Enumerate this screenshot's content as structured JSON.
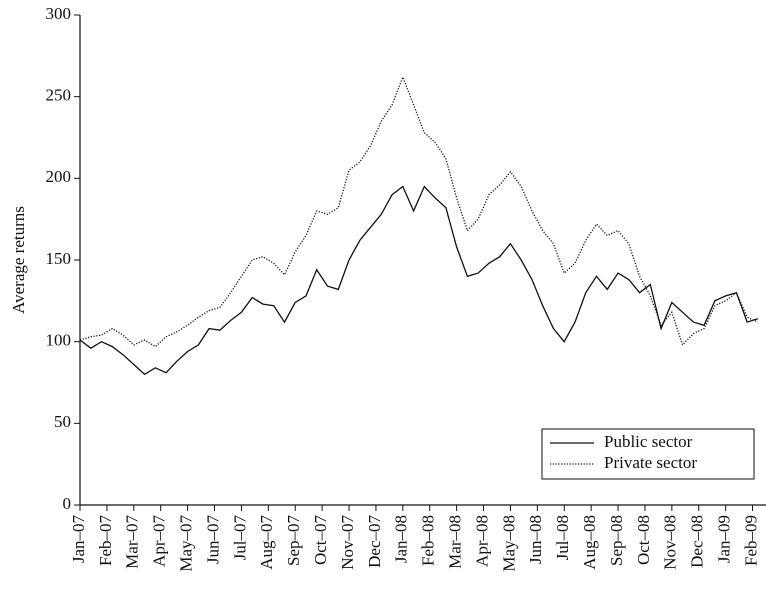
{
  "chart_data": {
    "type": "line",
    "ylabel": "Average returns",
    "x": [
      0,
      0.4,
      0.8,
      1.2,
      1.6,
      2,
      2.4,
      2.8,
      3.2,
      3.6,
      4,
      4.4,
      4.8,
      5.2,
      5.6,
      6,
      6.4,
      6.8,
      7.2,
      7.6,
      8,
      8.4,
      8.8,
      9.2,
      9.6,
      10,
      10.4,
      10.8,
      11.2,
      11.6,
      12,
      12.4,
      12.8,
      13.2,
      13.6,
      14,
      14.4,
      14.8,
      15.2,
      15.6,
      16,
      16.4,
      16.8,
      17.2,
      17.6,
      18,
      18.4,
      18.8,
      19.2,
      19.6,
      20,
      20.4,
      20.8,
      21.2,
      21.6,
      22,
      22.4,
      22.8,
      23.2,
      23.6,
      24,
      24.4,
      24.8,
      25.2
    ],
    "series": [
      {
        "name": "Public sector",
        "color": "#111111",
        "dash": "solid",
        "values": [
          101,
          96,
          100,
          97,
          92,
          86,
          80,
          84,
          81,
          88,
          94,
          98,
          108,
          107,
          113,
          118,
          127,
          123,
          122,
          112,
          124,
          128,
          144,
          134,
          132,
          150,
          162,
          170,
          178,
          190,
          195,
          180,
          195,
          188,
          182,
          158,
          140,
          142,
          148,
          152,
          160,
          150,
          138,
          122,
          108,
          100,
          112,
          130,
          140,
          132,
          142,
          138,
          130,
          135,
          108,
          124,
          118,
          112,
          110,
          125,
          128,
          130,
          112,
          114
        ]
      },
      {
        "name": "Private sector",
        "color": "#111111",
        "dash": "dotted",
        "values": [
          101,
          103,
          104,
          108,
          104,
          98,
          101,
          97,
          103,
          106,
          110,
          115,
          119,
          121,
          130,
          140,
          150,
          152,
          148,
          141,
          155,
          165,
          180,
          178,
          182,
          205,
          210,
          220,
          235,
          245,
          262,
          245,
          228,
          222,
          212,
          188,
          168,
          175,
          190,
          196,
          204,
          195,
          180,
          168,
          160,
          142,
          148,
          162,
          172,
          165,
          168,
          160,
          140,
          128,
          110,
          118,
          98,
          105,
          108,
          122,
          125,
          130,
          115,
          112
        ]
      }
    ],
    "xlim": [
      0,
      25.5
    ],
    "xticks": [
      {
        "value": 0,
        "label": "Jan–07"
      },
      {
        "value": 1,
        "label": "Feb–07"
      },
      {
        "value": 2,
        "label": "Mar–07"
      },
      {
        "value": 3,
        "label": "Apr–07"
      },
      {
        "value": 4,
        "label": "May–07"
      },
      {
        "value": 5,
        "label": "Jun–07"
      },
      {
        "value": 6,
        "label": "Jul–07"
      },
      {
        "value": 7,
        "label": "Aug–07"
      },
      {
        "value": 8,
        "label": "Sep–07"
      },
      {
        "value": 9,
        "label": "Oct–07"
      },
      {
        "value": 10,
        "label": "Nov–07"
      },
      {
        "value": 11,
        "label": "Dec–07"
      },
      {
        "value": 12,
        "label": "Jan–08"
      },
      {
        "value": 13,
        "label": "Feb–08"
      },
      {
        "value": 14,
        "label": "Mar–08"
      },
      {
        "value": 15,
        "label": "Apr–08"
      },
      {
        "value": 16,
        "label": "May–08"
      },
      {
        "value": 17,
        "label": "Jun–08"
      },
      {
        "value": 18,
        "label": "Jul–08"
      },
      {
        "value": 19,
        "label": "Aug–08"
      },
      {
        "value": 20,
        "label": "Sep–08"
      },
      {
        "value": 21,
        "label": "Oct–08"
      },
      {
        "value": 22,
        "label": "Nov–08"
      },
      {
        "value": 23,
        "label": "Dec–08"
      },
      {
        "value": 24,
        "label": "Jan–09"
      },
      {
        "value": 25,
        "label": "Feb–09"
      }
    ],
    "ylim": [
      0,
      300
    ],
    "yticks": [
      0,
      50,
      100,
      150,
      200,
      250,
      300
    ],
    "grid": false,
    "legend": "lower right"
  }
}
